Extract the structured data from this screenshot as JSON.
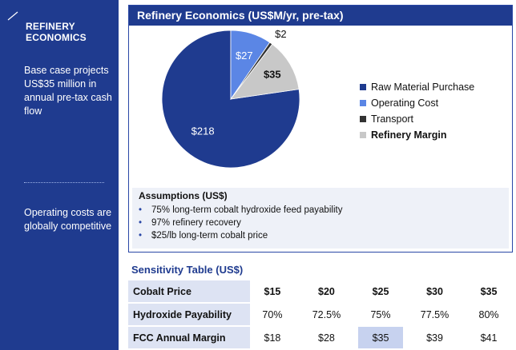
{
  "sidebar": {
    "title_line1": "REFINERY",
    "title_line2": "ECONOMICS",
    "text1": "Base case projects US$35 million in annual pre-tax cash flow",
    "text2": "Operating costs are globally competitive"
  },
  "chart_data": {
    "type": "pie",
    "title": "Refinery Economics (US$M/yr, pre-tax)",
    "unit": "US$M/yr",
    "slices": [
      {
        "label": "Raw Material Purchase",
        "value": 218,
        "data_label": "$218",
        "color": "#1f3b8f"
      },
      {
        "label": "Operating Cost",
        "value": 27,
        "data_label": "$27",
        "color": "#5b86e5"
      },
      {
        "label": "Transport",
        "value": 2,
        "data_label": "$2",
        "color": "#333333"
      },
      {
        "label": "Refinery Margin",
        "value": 35,
        "data_label": "$35",
        "color": "#c8c8c8"
      }
    ],
    "legend_position": "right",
    "start_angle_deg": 0
  },
  "assumptions": {
    "title": "Assumptions (US$)",
    "items": [
      "75% long-term cobalt hydroxide feed payability",
      "97% refinery recovery",
      "$25/lb long-term cobalt price"
    ]
  },
  "sensitivity": {
    "title": "Sensitivity Table (US$)",
    "rows": [
      {
        "label": "Cobalt Price",
        "cells": [
          "$15",
          "$20",
          "$25",
          "$30",
          "$35"
        ]
      },
      {
        "label": "Hydroxide Payability",
        "cells": [
          "70%",
          "72.5%",
          "75%",
          "77.5%",
          "80%"
        ]
      },
      {
        "label": "FCC Annual Margin",
        "cells": [
          "$18",
          "$28",
          "$35",
          "$39",
          "$41"
        ]
      }
    ],
    "highlight_column": 2,
    "colors": {
      "label_bg": "#dde3f3",
      "highlight_bg": "#c7d2ef"
    }
  },
  "colors": {
    "brand": "#1f3b8f"
  }
}
